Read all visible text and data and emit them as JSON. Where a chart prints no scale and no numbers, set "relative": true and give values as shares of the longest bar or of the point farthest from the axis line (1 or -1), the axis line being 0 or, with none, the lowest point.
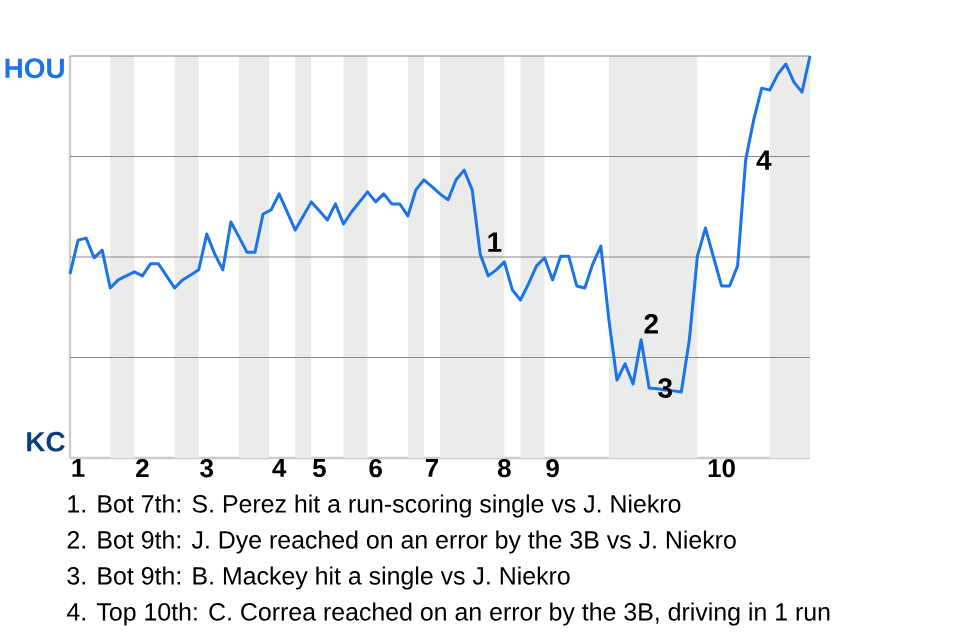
{
  "chart_data": {
    "type": "line",
    "relative": true,
    "categories": [
      null,
      "1",
      null,
      null,
      null,
      null,
      null,
      null,
      null,
      "2",
      null,
      null,
      null,
      null,
      null,
      null,
      null,
      "3",
      null,
      null,
      null,
      null,
      null,
      null,
      null,
      null,
      "4",
      null,
      null,
      null,
      null,
      "5",
      null,
      null,
      null,
      null,
      null,
      null,
      "6",
      null,
      null,
      null,
      null,
      null,
      null,
      "7",
      null,
      null,
      null,
      null,
      null,
      null,
      null,
      null,
      "8",
      null,
      null,
      null,
      null,
      null,
      "9",
      null,
      null,
      null,
      null,
      null,
      null,
      null,
      null,
      null,
      null,
      null,
      null,
      null,
      null,
      null,
      null,
      null,
      null,
      null,
      null,
      "10",
      null,
      null,
      null,
      null,
      null,
      null,
      null,
      null,
      null,
      null,
      null
    ],
    "series": [
      {
        "color": "#1a73e8",
        "values": [
          0.458,
          0.542,
          0.547,
          0.498,
          0.517,
          0.423,
          0.443,
          0.453,
          0.463,
          0.453,
          0.483,
          0.483,
          0.453,
          0.423,
          0.443,
          0.455,
          0.468,
          0.557,
          0.507,
          0.468,
          0.587,
          0.55,
          0.512,
          0.512,
          0.607,
          0.617,
          0.657,
          0.612,
          0.567,
          0.602,
          0.637,
          0.615,
          0.592,
          0.632,
          0.582,
          0.612,
          0.637,
          0.662,
          0.637,
          0.657,
          0.632,
          0.632,
          0.602,
          0.667,
          0.692,
          0.675,
          0.657,
          0.642,
          0.692,
          0.716,
          0.667,
          0.507,
          0.453,
          0.468,
          0.488,
          0.418,
          0.393,
          0.433,
          0.478,
          0.498,
          0.443,
          0.502,
          0.502,
          0.428,
          0.423,
          0.483,
          0.527,
          0.343,
          0.194,
          0.234,
          0.184,
          0.294,
          0.174,
          0.172,
          0.169,
          0.167,
          0.164,
          0.294,
          0.502,
          0.572,
          0.5,
          0.428,
          0.428,
          0.478,
          0.741,
          0.841,
          0.92,
          0.915,
          0.955,
          0.98,
          0.935,
          0.91,
          1.0
        ]
      }
    ],
    "ref_lines": [
      {
        "axis": "y",
        "value": 0.25,
        "color": "#888888"
      },
      {
        "axis": "y",
        "value": 0.5,
        "color": "#888888"
      },
      {
        "axis": "y",
        "value": 0.75,
        "color": "#888888"
      },
      {
        "axis": "y",
        "value": 1,
        "color": "#888888"
      }
    ],
    "annotations": [
      "HOU",
      "KC",
      "1",
      "2",
      "3",
      "4",
      "1. Bot 7th: S. Perez hit a run-scoring single vs J. Niekro",
      "2. Bot 9th: J. Dye reached on an error by the 3B vs J. Niekro",
      "3. Bot 9th: B. Mackey hit a single vs J. Niekro",
      "4. Top 10th: C. Correa reached on an error by the 3B, driving in 1 run"
    ]
  }
}
